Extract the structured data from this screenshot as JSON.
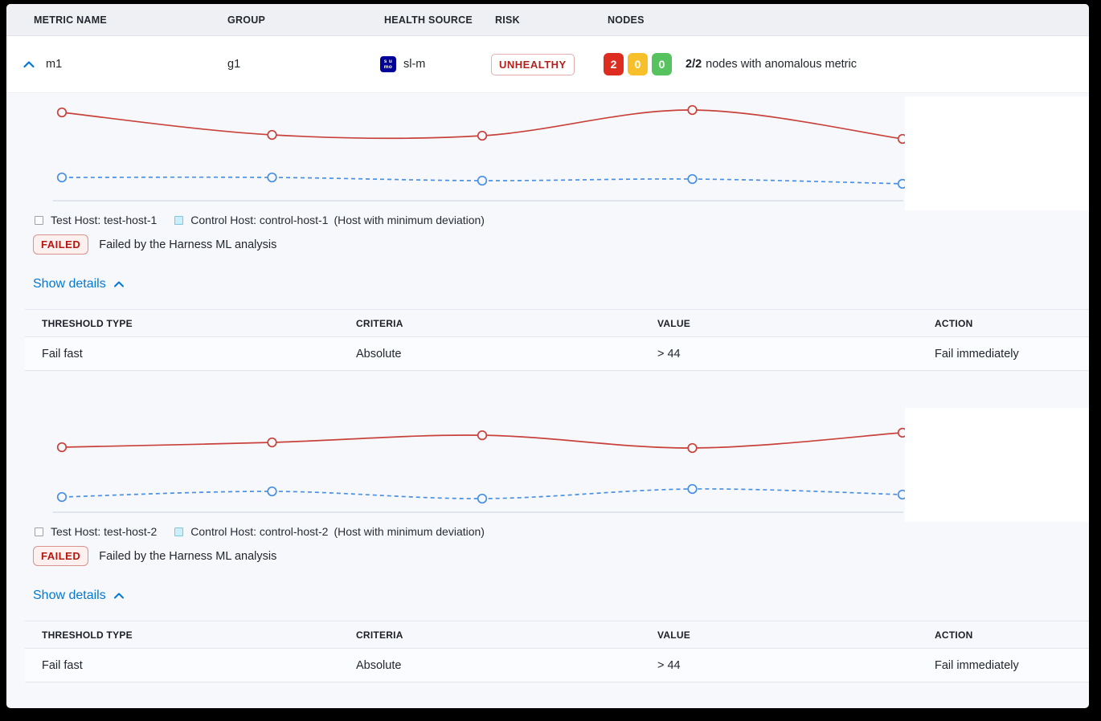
{
  "header": {
    "columns": [
      "METRIC NAME",
      "GROUP",
      "HEALTH SOURCE",
      "RISK",
      "NODES"
    ]
  },
  "metric_row": {
    "metric_name": "m1",
    "group": "g1",
    "health_source": {
      "name": "sl-m",
      "icon": "sumo-logic-icon",
      "icon_line1": "s u",
      "icon_line2": "mo"
    },
    "risk": "UNHEALTHY",
    "nodes": {
      "anomalous_count": "2",
      "warning_count": "0",
      "healthy_count": "0",
      "ratio": "2/2",
      "summary": "nodes with anomalous metric"
    }
  },
  "panels": [
    {
      "legend": {
        "test_host": "Test Host: test-host-1",
        "control_host": "Control Host: control-host-1",
        "note": "(Host with minimum deviation)"
      },
      "status": {
        "badge": "FAILED",
        "message": "Failed by the Harness ML analysis"
      },
      "details_toggle": "Show details",
      "table": {
        "headers": [
          "THRESHOLD TYPE",
          "CRITERIA",
          "VALUE",
          "ACTION"
        ],
        "rows": [
          {
            "threshold_type": "Fail fast",
            "criteria": "Absolute",
            "value": "> 44",
            "action": "Fail immediately"
          }
        ]
      }
    },
    {
      "legend": {
        "test_host": "Test Host: test-host-2",
        "control_host": "Control Host: control-host-2",
        "note": "(Host with minimum deviation)"
      },
      "status": {
        "badge": "FAILED",
        "message": "Failed by the Harness ML analysis"
      },
      "details_toggle": "Show details",
      "table": {
        "headers": [
          "THRESHOLD TYPE",
          "CRITERIA",
          "VALUE",
          "ACTION"
        ],
        "rows": [
          {
            "threshold_type": "Fail fast",
            "criteria": "Absolute",
            "value": "> 44",
            "action": "Fail immediately"
          }
        ]
      }
    }
  ],
  "chart_data": [
    {
      "type": "line",
      "x": [
        1,
        2,
        3,
        4,
        5
      ],
      "series": [
        {
          "name": "Test Host: test-host-1",
          "color": "#c8423b",
          "line_style": "solid",
          "marker": "circle",
          "values": [
            84.6,
            63.1,
            62.3,
            86.9,
            59.2
          ]
        },
        {
          "name": "Control Host: control-host-1",
          "color": "#4a90e2",
          "line_style": "dashed",
          "marker": "circle",
          "values": [
            22.3,
            22.3,
            19.2,
            20.8,
            16.2
          ]
        }
      ],
      "title": "",
      "xlabel": "",
      "ylabel": "",
      "ylim": [
        0,
        100
      ],
      "axes_labeled": false,
      "grid": false,
      "legend_position": "below"
    },
    {
      "type": "line",
      "x": [
        1,
        2,
        3,
        4,
        5
      ],
      "series": [
        {
          "name": "Test Host: test-host-2",
          "color": "#c8423b",
          "line_style": "solid",
          "marker": "circle",
          "values": [
            62.3,
            66.9,
            73.8,
            61.5,
            76.2
          ]
        },
        {
          "name": "Control Host: control-host-2",
          "color": "#4a90e2",
          "line_style": "dashed",
          "marker": "circle",
          "values": [
            14.6,
            20.0,
            13.1,
            22.3,
            16.9
          ]
        }
      ],
      "title": "",
      "xlabel": "",
      "ylabel": "",
      "ylim": [
        0,
        100
      ],
      "axes_labeled": false,
      "grid": false,
      "legend_position": "below"
    }
  ],
  "colors": {
    "accent_blue": "#0278d5",
    "risk_red_text": "#b6201b",
    "failed_bg": "#fdf0ef",
    "node_red": "#dd2c20",
    "node_amber": "#f7c02b",
    "node_green": "#57c35e",
    "test_line": "#c8423b",
    "control_line": "#4a90e2",
    "header_bg": "#eef0f4",
    "section_bg": "#f7f8fb",
    "sumo_navy": "#000099"
  }
}
